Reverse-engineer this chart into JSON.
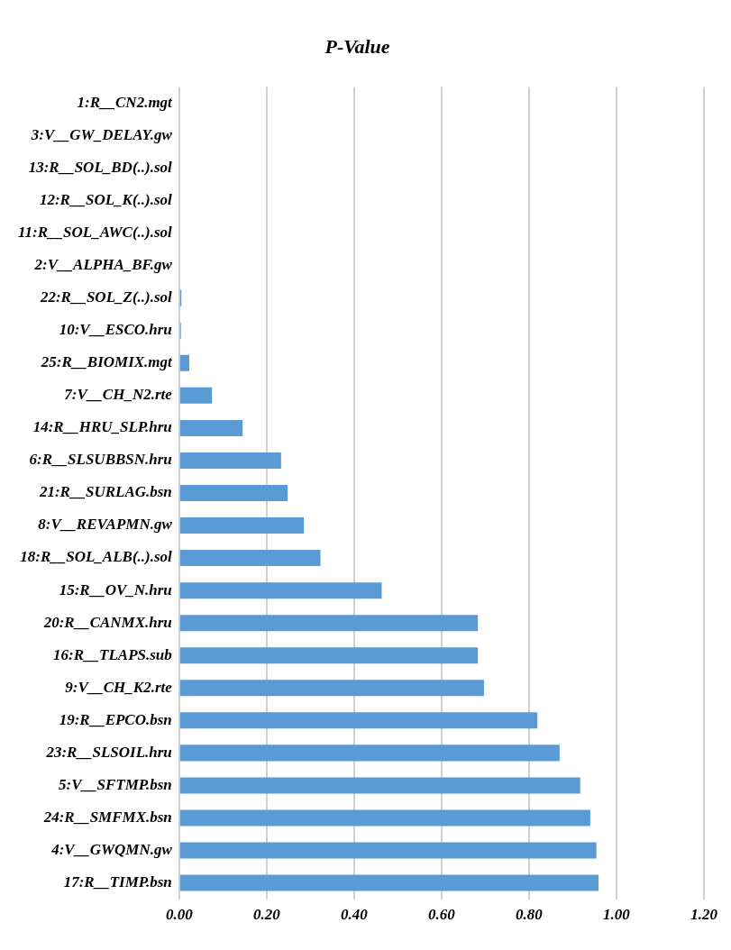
{
  "chart_data": {
    "type": "bar",
    "orientation": "horizontal",
    "title": "P-Value",
    "categories": [
      "1:R__CN2.mgt",
      "3:V__GW_DELAY.gw",
      "13:R__SOL_BD(..).sol",
      "12:R__SOL_K(..).sol",
      "11:R__SOL_AWC(..).sol",
      "2:V__ALPHA_BF.gw",
      "22:R__SOL_Z(..).sol",
      "10:V__ESCO.hru",
      "25:R__BIOMIX.mgt",
      "7:V__CH_N2.rte",
      "14:R__HRU_SLP.hru",
      "6:R__SLSUBBSN.hru",
      "21:R__SURLAG.bsn",
      "8:V__REVAPMN.gw",
      "18:R__SOL_ALB(..).sol",
      "15:R__OV_N.hru",
      "20:R__CANMX.hru",
      "16:R__TLAPS.sub",
      "9:V__CH_K2.rte",
      "19:R__EPCO.bsn",
      "23:R__SLSOIL.hru",
      "5:V__SFTMP.bsn",
      "24:R__SMFMX.bsn",
      "4:V__GWQMN.gw",
      "17:R__TIMP.bsn"
    ],
    "values": [
      0,
      0,
      0,
      0,
      0,
      0,
      0.005,
      0.004,
      0.023,
      0.075,
      0.145,
      0.233,
      0.248,
      0.285,
      0.323,
      0.463,
      0.683,
      0.683,
      0.697,
      0.819,
      0.87,
      0.917,
      0.94,
      0.954,
      0.959
    ],
    "color": "#5b9bd5",
    "xlim": [
      0,
      1.2
    ],
    "xticks": [
      {
        "value": 0,
        "label": "0.00"
      },
      {
        "value": 0.2,
        "label": "0.20"
      },
      {
        "value": 0.4,
        "label": "0.40"
      },
      {
        "value": 0.6,
        "label": "0.60"
      },
      {
        "value": 0.8,
        "label": "0.80"
      },
      {
        "value": 1,
        "label": "1.00"
      },
      {
        "value": 1.2,
        "label": "1.20"
      }
    ],
    "grid": "x"
  }
}
